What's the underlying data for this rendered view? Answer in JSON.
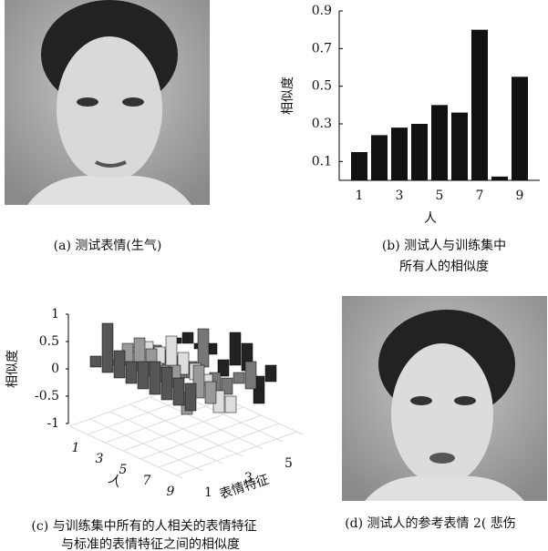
{
  "panels": {
    "a": {
      "caption": "(a) 测试表情(生气)"
    },
    "b": {
      "caption": [
        "(b) 测试人与训练集中",
        "所有人的相似度"
      ],
      "chart_data": {
        "type": "bar",
        "x": [
          1,
          2,
          3,
          4,
          5,
          6,
          7,
          8,
          9
        ],
        "values": [
          0.15,
          0.24,
          0.28,
          0.3,
          0.4,
          0.36,
          0.8,
          0.02,
          0.55
        ],
        "xlabel": "人",
        "ylabel": "相似度",
        "color": "#111111",
        "xlim": [
          0,
          10
        ],
        "xticks": [
          1,
          3,
          5,
          7,
          9
        ],
        "ylim": [
          0,
          0.9
        ],
        "yticks": [
          0.1,
          0.3,
          0.5,
          0.7,
          0.9
        ]
      }
    },
    "c": {
      "caption": [
        "(c) 与训练集中所有的人相关的表情特征",
        "与标准的表情特征之间的相似度"
      ],
      "chart_data": {
        "type": "bar3d",
        "xlabel": "人",
        "ylabel": "表情特征",
        "zlabel": "相似度",
        "xticks": [
          1,
          3,
          5,
          7,
          9
        ],
        "yticks": [
          1,
          3,
          5
        ],
        "zlim": [
          -1,
          1
        ],
        "zticks": [
          1,
          0.5,
          0,
          -0.5,
          -1
        ],
        "colors": [
          "#555555",
          "#999999",
          "#dddddd",
          "#777777",
          "#222222"
        ],
        "values": [
          [
            0.2,
            -0.1,
            0.1,
            -0.2,
            -0.1
          ],
          [
            0.9,
            0.4,
            0.3,
            -0.5,
            0.2
          ],
          [
            0.5,
            0.6,
            0.3,
            -0.4,
            0.1
          ],
          [
            0.4,
            0.5,
            0.6,
            -0.3,
            0.2
          ],
          [
            0.5,
            0.3,
            0.4,
            0.7,
            -0.3
          ],
          [
            0.6,
            0.4,
            0.3,
            -0.4,
            0.6
          ],
          [
            0.6,
            -0.4,
            0.2,
            -0.3,
            0.5
          ],
          [
            0.5,
            0.6,
            -0.4,
            0.2,
            -0.5
          ],
          [
            0.5,
            0.4,
            -0.3,
            0.5,
            0.3
          ]
        ]
      }
    },
    "d": {
      "caption": "(d) 测试人的参考表情 2( 悲伤"
    }
  }
}
